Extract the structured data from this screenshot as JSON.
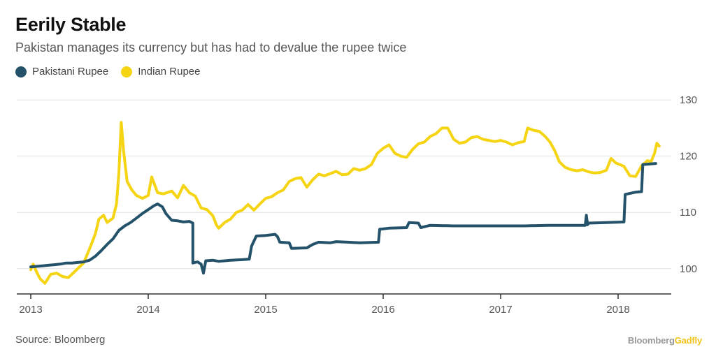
{
  "title": "Eerily Stable",
  "subtitle": "Pakistan manages its currency but has had to devalue the rupee twice",
  "source": "Source: Bloomberg",
  "brand": {
    "part1": "Bloomberg",
    "part2": "Gadfly"
  },
  "colors": {
    "pkr": "#23526a",
    "inr": "#f5d414",
    "grid": "#e2e2e2",
    "axis": "#333333",
    "text": "#555555"
  },
  "chart_data": {
    "type": "line",
    "title": "Eerily Stable",
    "subtitle": "Pakistan manages its currency but has had to devalue the rupee twice",
    "xlabel": "",
    "ylabel": "",
    "xlim": [
      2013,
      2018.55
    ],
    "ylim": [
      95.5,
      132
    ],
    "x_ticks": [
      2013,
      2014,
      2015,
      2016,
      2017,
      2018
    ],
    "x_tick_labels": [
      "2013",
      "2014",
      "2015",
      "2016",
      "2017",
      "2018"
    ],
    "y_ticks": [
      100,
      110,
      120,
      130
    ],
    "y_tick_labels": [
      "100",
      "110",
      "120",
      "130"
    ],
    "grid": "horizontal",
    "legend_position": "top-left",
    "series": [
      {
        "name": "Pakistani Rupee",
        "color": "#23526a",
        "points": [
          [
            2013.0,
            100.3
          ],
          [
            2013.05,
            100.4
          ],
          [
            2013.1,
            100.5
          ],
          [
            2013.15,
            100.6
          ],
          [
            2013.2,
            100.7
          ],
          [
            2013.25,
            100.8
          ],
          [
            2013.3,
            101.0
          ],
          [
            2013.35,
            101.0
          ],
          [
            2013.4,
            101.1
          ],
          [
            2013.45,
            101.2
          ],
          [
            2013.5,
            101.5
          ],
          [
            2013.55,
            102.2
          ],
          [
            2013.6,
            103.2
          ],
          [
            2013.65,
            104.3
          ],
          [
            2013.7,
            105.3
          ],
          [
            2013.75,
            106.8
          ],
          [
            2013.8,
            107.6
          ],
          [
            2013.85,
            108.2
          ],
          [
            2013.9,
            109.0
          ],
          [
            2013.95,
            109.8
          ],
          [
            2014.0,
            110.5
          ],
          [
            2014.05,
            111.2
          ],
          [
            2014.08,
            111.5
          ],
          [
            2014.12,
            111.0
          ],
          [
            2014.15,
            109.8
          ],
          [
            2014.2,
            108.6
          ],
          [
            2014.25,
            108.5
          ],
          [
            2014.3,
            108.3
          ],
          [
            2014.35,
            108.4
          ],
          [
            2014.38,
            108.1
          ],
          [
            2014.38,
            101.0
          ],
          [
            2014.42,
            101.2
          ],
          [
            2014.45,
            100.8
          ],
          [
            2014.47,
            99.2
          ],
          [
            2014.49,
            101.4
          ],
          [
            2014.55,
            101.5
          ],
          [
            2014.6,
            101.3
          ],
          [
            2014.7,
            101.5
          ],
          [
            2014.8,
            101.6
          ],
          [
            2014.86,
            101.7
          ],
          [
            2014.88,
            104.0
          ],
          [
            2014.92,
            105.8
          ],
          [
            2015.0,
            105.9
          ],
          [
            2015.08,
            106.1
          ],
          [
            2015.1,
            105.7
          ],
          [
            2015.12,
            104.7
          ],
          [
            2015.2,
            104.6
          ],
          [
            2015.22,
            103.6
          ],
          [
            2015.35,
            103.7
          ],
          [
            2015.4,
            104.3
          ],
          [
            2015.45,
            104.7
          ],
          [
            2015.55,
            104.6
          ],
          [
            2015.6,
            104.8
          ],
          [
            2015.7,
            104.7
          ],
          [
            2015.8,
            104.6
          ],
          [
            2015.96,
            104.7
          ],
          [
            2015.97,
            107.0
          ],
          [
            2016.05,
            107.2
          ],
          [
            2016.2,
            107.3
          ],
          [
            2016.22,
            108.2
          ],
          [
            2016.3,
            108.1
          ],
          [
            2016.32,
            107.3
          ],
          [
            2016.4,
            107.7
          ],
          [
            2016.6,
            107.6
          ],
          [
            2016.8,
            107.6
          ],
          [
            2017.0,
            107.6
          ],
          [
            2017.2,
            107.6
          ],
          [
            2017.4,
            107.7
          ],
          [
            2017.5,
            107.7
          ],
          [
            2017.72,
            107.7
          ],
          [
            2017.73,
            109.5
          ],
          [
            2017.74,
            107.8
          ],
          [
            2017.75,
            108.1
          ],
          [
            2017.9,
            108.2
          ],
          [
            2018.05,
            108.3
          ],
          [
            2018.06,
            113.2
          ],
          [
            2018.15,
            113.6
          ],
          [
            2018.2,
            113.7
          ],
          [
            2018.21,
            118.5
          ],
          [
            2018.32,
            118.7
          ]
        ]
      },
      {
        "name": "Indian Rupee",
        "color": "#f5d414",
        "points": [
          [
            2013.0,
            99.8
          ],
          [
            2013.02,
            100.8
          ],
          [
            2013.05,
            99.4
          ],
          [
            2013.08,
            98.2
          ],
          [
            2013.12,
            97.4
          ],
          [
            2013.17,
            99.0
          ],
          [
            2013.22,
            99.2
          ],
          [
            2013.27,
            98.6
          ],
          [
            2013.32,
            98.4
          ],
          [
            2013.38,
            99.6
          ],
          [
            2013.45,
            101.0
          ],
          [
            2013.5,
            103.5
          ],
          [
            2013.55,
            106.2
          ],
          [
            2013.58,
            108.8
          ],
          [
            2013.62,
            109.5
          ],
          [
            2013.65,
            108.2
          ],
          [
            2013.7,
            109.0
          ],
          [
            2013.73,
            111.5
          ],
          [
            2013.75,
            117.0
          ],
          [
            2013.77,
            126.0
          ],
          [
            2013.79,
            121.0
          ],
          [
            2013.82,
            115.5
          ],
          [
            2013.86,
            114.0
          ],
          [
            2013.9,
            113.0
          ],
          [
            2013.95,
            112.5
          ],
          [
            2014.0,
            113.0
          ],
          [
            2014.03,
            116.3
          ],
          [
            2014.08,
            113.5
          ],
          [
            2014.13,
            113.3
          ],
          [
            2014.2,
            113.8
          ],
          [
            2014.25,
            112.6
          ],
          [
            2014.3,
            114.8
          ],
          [
            2014.35,
            113.5
          ],
          [
            2014.4,
            112.9
          ],
          [
            2014.45,
            110.8
          ],
          [
            2014.5,
            110.5
          ],
          [
            2014.55,
            109.4
          ],
          [
            2014.58,
            107.8
          ],
          [
            2014.6,
            107.2
          ],
          [
            2014.65,
            108.2
          ],
          [
            2014.7,
            108.8
          ],
          [
            2014.75,
            110.0
          ],
          [
            2014.8,
            110.4
          ],
          [
            2014.85,
            111.4
          ],
          [
            2014.9,
            110.4
          ],
          [
            2014.95,
            111.5
          ],
          [
            2015.0,
            112.5
          ],
          [
            2015.05,
            112.8
          ],
          [
            2015.1,
            113.5
          ],
          [
            2015.15,
            114.0
          ],
          [
            2015.2,
            115.5
          ],
          [
            2015.25,
            116.0
          ],
          [
            2015.3,
            116.2
          ],
          [
            2015.35,
            114.5
          ],
          [
            2015.4,
            115.8
          ],
          [
            2015.45,
            116.8
          ],
          [
            2015.5,
            116.5
          ],
          [
            2015.55,
            116.9
          ],
          [
            2015.6,
            117.3
          ],
          [
            2015.65,
            116.7
          ],
          [
            2015.7,
            116.8
          ],
          [
            2015.75,
            117.8
          ],
          [
            2015.8,
            117.5
          ],
          [
            2015.85,
            117.8
          ],
          [
            2015.9,
            118.5
          ],
          [
            2015.95,
            120.5
          ],
          [
            2016.0,
            121.4
          ],
          [
            2016.05,
            122.0
          ],
          [
            2016.1,
            120.5
          ],
          [
            2016.15,
            120.0
          ],
          [
            2016.2,
            119.8
          ],
          [
            2016.25,
            121.2
          ],
          [
            2016.3,
            122.2
          ],
          [
            2016.35,
            122.5
          ],
          [
            2016.4,
            123.5
          ],
          [
            2016.45,
            124.0
          ],
          [
            2016.5,
            125.0
          ],
          [
            2016.55,
            125.0
          ],
          [
            2016.6,
            123.0
          ],
          [
            2016.65,
            122.3
          ],
          [
            2016.7,
            122.5
          ],
          [
            2016.75,
            123.3
          ],
          [
            2016.8,
            123.5
          ],
          [
            2016.85,
            123.0
          ],
          [
            2016.9,
            122.8
          ],
          [
            2016.95,
            122.6
          ],
          [
            2017.0,
            122.8
          ],
          [
            2017.05,
            122.5
          ],
          [
            2017.1,
            122.0
          ],
          [
            2017.15,
            122.4
          ],
          [
            2017.2,
            122.6
          ],
          [
            2017.23,
            125.0
          ],
          [
            2017.28,
            124.6
          ],
          [
            2017.33,
            124.4
          ],
          [
            2017.38,
            123.5
          ],
          [
            2017.42,
            122.5
          ],
          [
            2017.46,
            121.0
          ],
          [
            2017.5,
            119.0
          ],
          [
            2017.55,
            118.0
          ],
          [
            2017.6,
            117.6
          ],
          [
            2017.65,
            117.4
          ],
          [
            2017.7,
            117.6
          ],
          [
            2017.75,
            117.2
          ],
          [
            2017.8,
            117.0
          ],
          [
            2017.85,
            117.1
          ],
          [
            2017.9,
            117.5
          ],
          [
            2017.94,
            119.6
          ],
          [
            2017.98,
            118.8
          ],
          [
            2018.05,
            118.2
          ],
          [
            2018.1,
            116.5
          ],
          [
            2018.15,
            116.4
          ],
          [
            2018.2,
            118.3
          ],
          [
            2018.25,
            119.2
          ],
          [
            2018.28,
            119.0
          ],
          [
            2018.31,
            120.5
          ],
          [
            2018.33,
            122.3
          ],
          [
            2018.35,
            121.8
          ]
        ]
      }
    ]
  }
}
